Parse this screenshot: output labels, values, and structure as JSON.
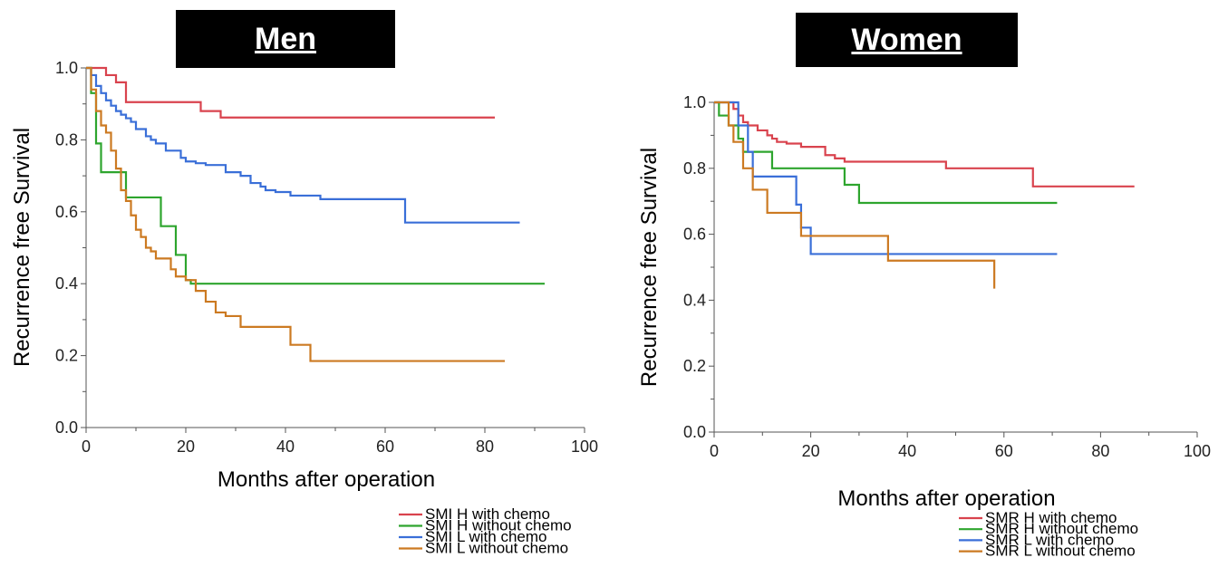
{
  "chart_data": [
    {
      "type": "line",
      "title": "Men",
      "xlabel": "Months after operation",
      "ylabel": "Recurrence free Survival",
      "xlim": [
        0,
        100
      ],
      "ylim": [
        0.0,
        1.0
      ],
      "xticks": [
        "0",
        "20",
        "40",
        "60",
        "80",
        "100"
      ],
      "yticks": [
        "0.0",
        "0.2",
        "0.4",
        "0.6",
        "0.8",
        "1.0"
      ],
      "step": true,
      "series": [
        {
          "name": "SMI  H with chemo",
          "color": "#d9434e",
          "x": [
            0,
            2,
            4,
            6,
            8,
            23,
            27,
            82
          ],
          "y": [
            1.0,
            1.0,
            0.98,
            0.96,
            0.905,
            0.88,
            0.862,
            0.862
          ]
        },
        {
          "name": "SMI  H without chemo",
          "color": "#2ea52e",
          "x": [
            0,
            1,
            2,
            3,
            6,
            8,
            15,
            18,
            20,
            21,
            92
          ],
          "y": [
            1.0,
            0.93,
            0.79,
            0.71,
            0.71,
            0.64,
            0.56,
            0.48,
            0.41,
            0.4,
            0.4
          ]
        },
        {
          "name": "SMI  L with chemo",
          "color": "#3a6fd8",
          "x": [
            0,
            1,
            2,
            3,
            4,
            5,
            6,
            7,
            8,
            9,
            10,
            12,
            13,
            14,
            16,
            19,
            20,
            22,
            24,
            28,
            31,
            33,
            35,
            36,
            38,
            41,
            47,
            64,
            87
          ],
          "y": [
            1.0,
            0.98,
            0.95,
            0.93,
            0.91,
            0.895,
            0.88,
            0.87,
            0.86,
            0.85,
            0.83,
            0.81,
            0.8,
            0.79,
            0.77,
            0.75,
            0.74,
            0.735,
            0.73,
            0.71,
            0.7,
            0.68,
            0.67,
            0.66,
            0.655,
            0.645,
            0.635,
            0.57,
            0.57
          ]
        },
        {
          "name": "SMI  L without chemo",
          "color": "#cc7a22",
          "x": [
            0,
            1,
            2,
            3,
            4,
            5,
            6,
            7,
            8,
            9,
            10,
            11,
            12,
            13,
            14,
            17,
            18,
            20,
            22,
            24,
            26,
            28,
            31,
            36,
            41,
            45,
            84
          ],
          "y": [
            1.0,
            0.94,
            0.88,
            0.84,
            0.82,
            0.77,
            0.72,
            0.66,
            0.63,
            0.59,
            0.55,
            0.53,
            0.5,
            0.49,
            0.47,
            0.44,
            0.42,
            0.41,
            0.38,
            0.35,
            0.32,
            0.31,
            0.28,
            0.28,
            0.23,
            0.185,
            0.185
          ]
        }
      ],
      "legend": "below-right"
    },
    {
      "type": "line",
      "title": "Women",
      "xlabel": "Months after operation",
      "ylabel": "Recurrence free Survival",
      "xlim": [
        0,
        100
      ],
      "ylim": [
        0.0,
        1.0
      ],
      "xticks": [
        "0",
        "20",
        "40",
        "60",
        "80",
        "100"
      ],
      "yticks": [
        "0.0",
        "0.2",
        "0.4",
        "0.6",
        "0.8",
        "1.0"
      ],
      "step": true,
      "series": [
        {
          "name": "SMR H with chemo",
          "color": "#d9434e",
          "x": [
            0,
            2,
            4,
            5,
            6,
            7,
            9,
            11,
            12,
            13,
            15,
            18,
            23,
            25,
            27,
            48,
            66,
            87
          ],
          "y": [
            1.0,
            1.0,
            0.98,
            0.96,
            0.94,
            0.93,
            0.915,
            0.9,
            0.89,
            0.88,
            0.875,
            0.865,
            0.84,
            0.83,
            0.82,
            0.8,
            0.745,
            0.745
          ]
        },
        {
          "name": "SMR H without chemo",
          "color": "#2ea52e",
          "x": [
            0,
            1,
            3,
            5,
            6,
            12,
            25,
            27,
            30,
            71
          ],
          "y": [
            1.0,
            0.96,
            0.93,
            0.89,
            0.85,
            0.8,
            0.8,
            0.75,
            0.695,
            0.695
          ]
        },
        {
          "name": "SMR L with chemo",
          "color": "#3a6fd8",
          "x": [
            0,
            3,
            5,
            7,
            8,
            17,
            18,
            20,
            71
          ],
          "y": [
            1.0,
            1.0,
            0.93,
            0.85,
            0.775,
            0.69,
            0.62,
            0.54,
            0.54
          ]
        },
        {
          "name": "SMR L without chemo",
          "color": "#cc7a22",
          "x": [
            0,
            3,
            4,
            6,
            8,
            11,
            18,
            36,
            58
          ],
          "y": [
            1.0,
            0.93,
            0.88,
            0.8,
            0.735,
            0.665,
            0.595,
            0.52,
            0.435
          ]
        }
      ],
      "legend": "below-right"
    }
  ]
}
